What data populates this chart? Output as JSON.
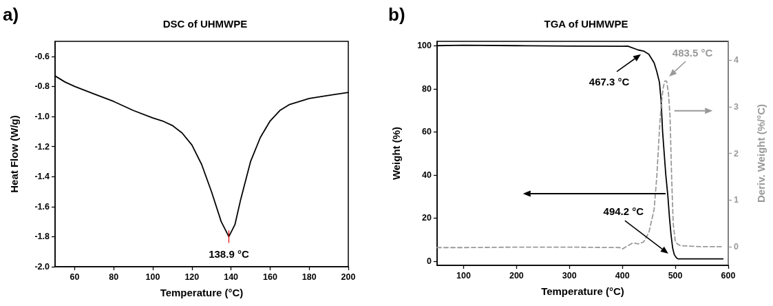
{
  "chart_data": [
    {
      "type": "line",
      "title": "DSC of UHMWPE",
      "xlabel": "Temperature (°C)",
      "ylabel": "Heat Flow (W/g)",
      "xlim": [
        50,
        200
      ],
      "xticks": [
        60,
        80,
        100,
        120,
        140,
        160,
        180,
        200
      ],
      "ylim": [
        -2.0,
        -0.5
      ],
      "yticks": [
        {
          "value": -2.0,
          "label": "-2.0"
        },
        -1.8,
        -1.6,
        -1.4,
        -1.2,
        {
          "value": -1.0,
          "label": "-1.0"
        },
        -0.8,
        -0.6
      ],
      "series": [
        {
          "color": "#000000",
          "line_style": "solid",
          "x": [
            50,
            55,
            60,
            70,
            80,
            90,
            100,
            105,
            110,
            115,
            120,
            125,
            130,
            135,
            138.9,
            142,
            145,
            150,
            155,
            160,
            165,
            170,
            180,
            190,
            200
          ],
          "values": [
            -0.73,
            -0.77,
            -0.8,
            -0.85,
            -0.9,
            -0.96,
            -1.01,
            -1.03,
            -1.06,
            -1.11,
            -1.19,
            -1.32,
            -1.5,
            -1.7,
            -1.8,
            -1.72,
            -1.55,
            -1.3,
            -1.14,
            -1.03,
            -0.96,
            -0.92,
            -0.88,
            -0.86,
            -0.84
          ]
        }
      ],
      "annotations": [
        "a)",
        {
          "text": "138.9 °C",
          "x": 138.9,
          "y": -1.8
        }
      ]
    },
    {
      "type": "line",
      "title": "TGA of UHMWPE",
      "xlabel": "Temperature (°C)",
      "ylabel": "Weight (%)",
      "y2label": "Deriv. Weight (%/°C)",
      "xlim": [
        50,
        600
      ],
      "xticks": [
        100,
        200,
        300,
        400,
        500,
        600
      ],
      "ylim": [
        -2,
        102
      ],
      "yticks": [
        0,
        20,
        40,
        60,
        80,
        100
      ],
      "y2lim": [
        -0.4,
        4.4
      ],
      "y2ticks": [
        0,
        1,
        2,
        3,
        4
      ],
      "series": [
        {
          "color": "#000000",
          "line_style": "solid",
          "x": [
            50,
            100,
            200,
            300,
            400,
            410,
            430,
            440,
            450,
            460,
            465,
            470,
            473,
            476,
            479,
            482,
            486,
            489,
            492,
            495,
            498,
            502,
            505,
            550,
            590
          ],
          "values": [
            100,
            100.2,
            100,
            99.8,
            99.7,
            99.8,
            98,
            97.5,
            96,
            92,
            88,
            83,
            75,
            60,
            50,
            40,
            30,
            20,
            12,
            6,
            3,
            1.5,
            1,
            1,
            1
          ]
        },
        {
          "color": "#999999",
          "line_style": "dashed",
          "axis": "y2",
          "x": [
            50,
            100,
            200,
            300,
            395,
            400,
            410,
            420,
            430,
            440,
            450,
            460,
            465,
            470,
            473,
            477,
            480,
            483.5,
            487,
            490,
            493,
            496,
            500,
            505,
            510,
            550,
            590
          ],
          "values": [
            -0.02,
            -0.02,
            -0.01,
            -0.01,
            -0.02,
            -0.05,
            0.02,
            0.08,
            0.06,
            0.1,
            0.3,
            0.8,
            1.5,
            2.5,
            3.0,
            3.4,
            3.55,
            3.55,
            3.3,
            2.8,
            1.5,
            0.5,
            0.1,
            0.05,
            0.02,
            0.0,
            0.0
          ]
        }
      ],
      "annotations": [
        "b)",
        "467.3 °C",
        "483.5 °C",
        "494.2 °C"
      ]
    }
  ]
}
